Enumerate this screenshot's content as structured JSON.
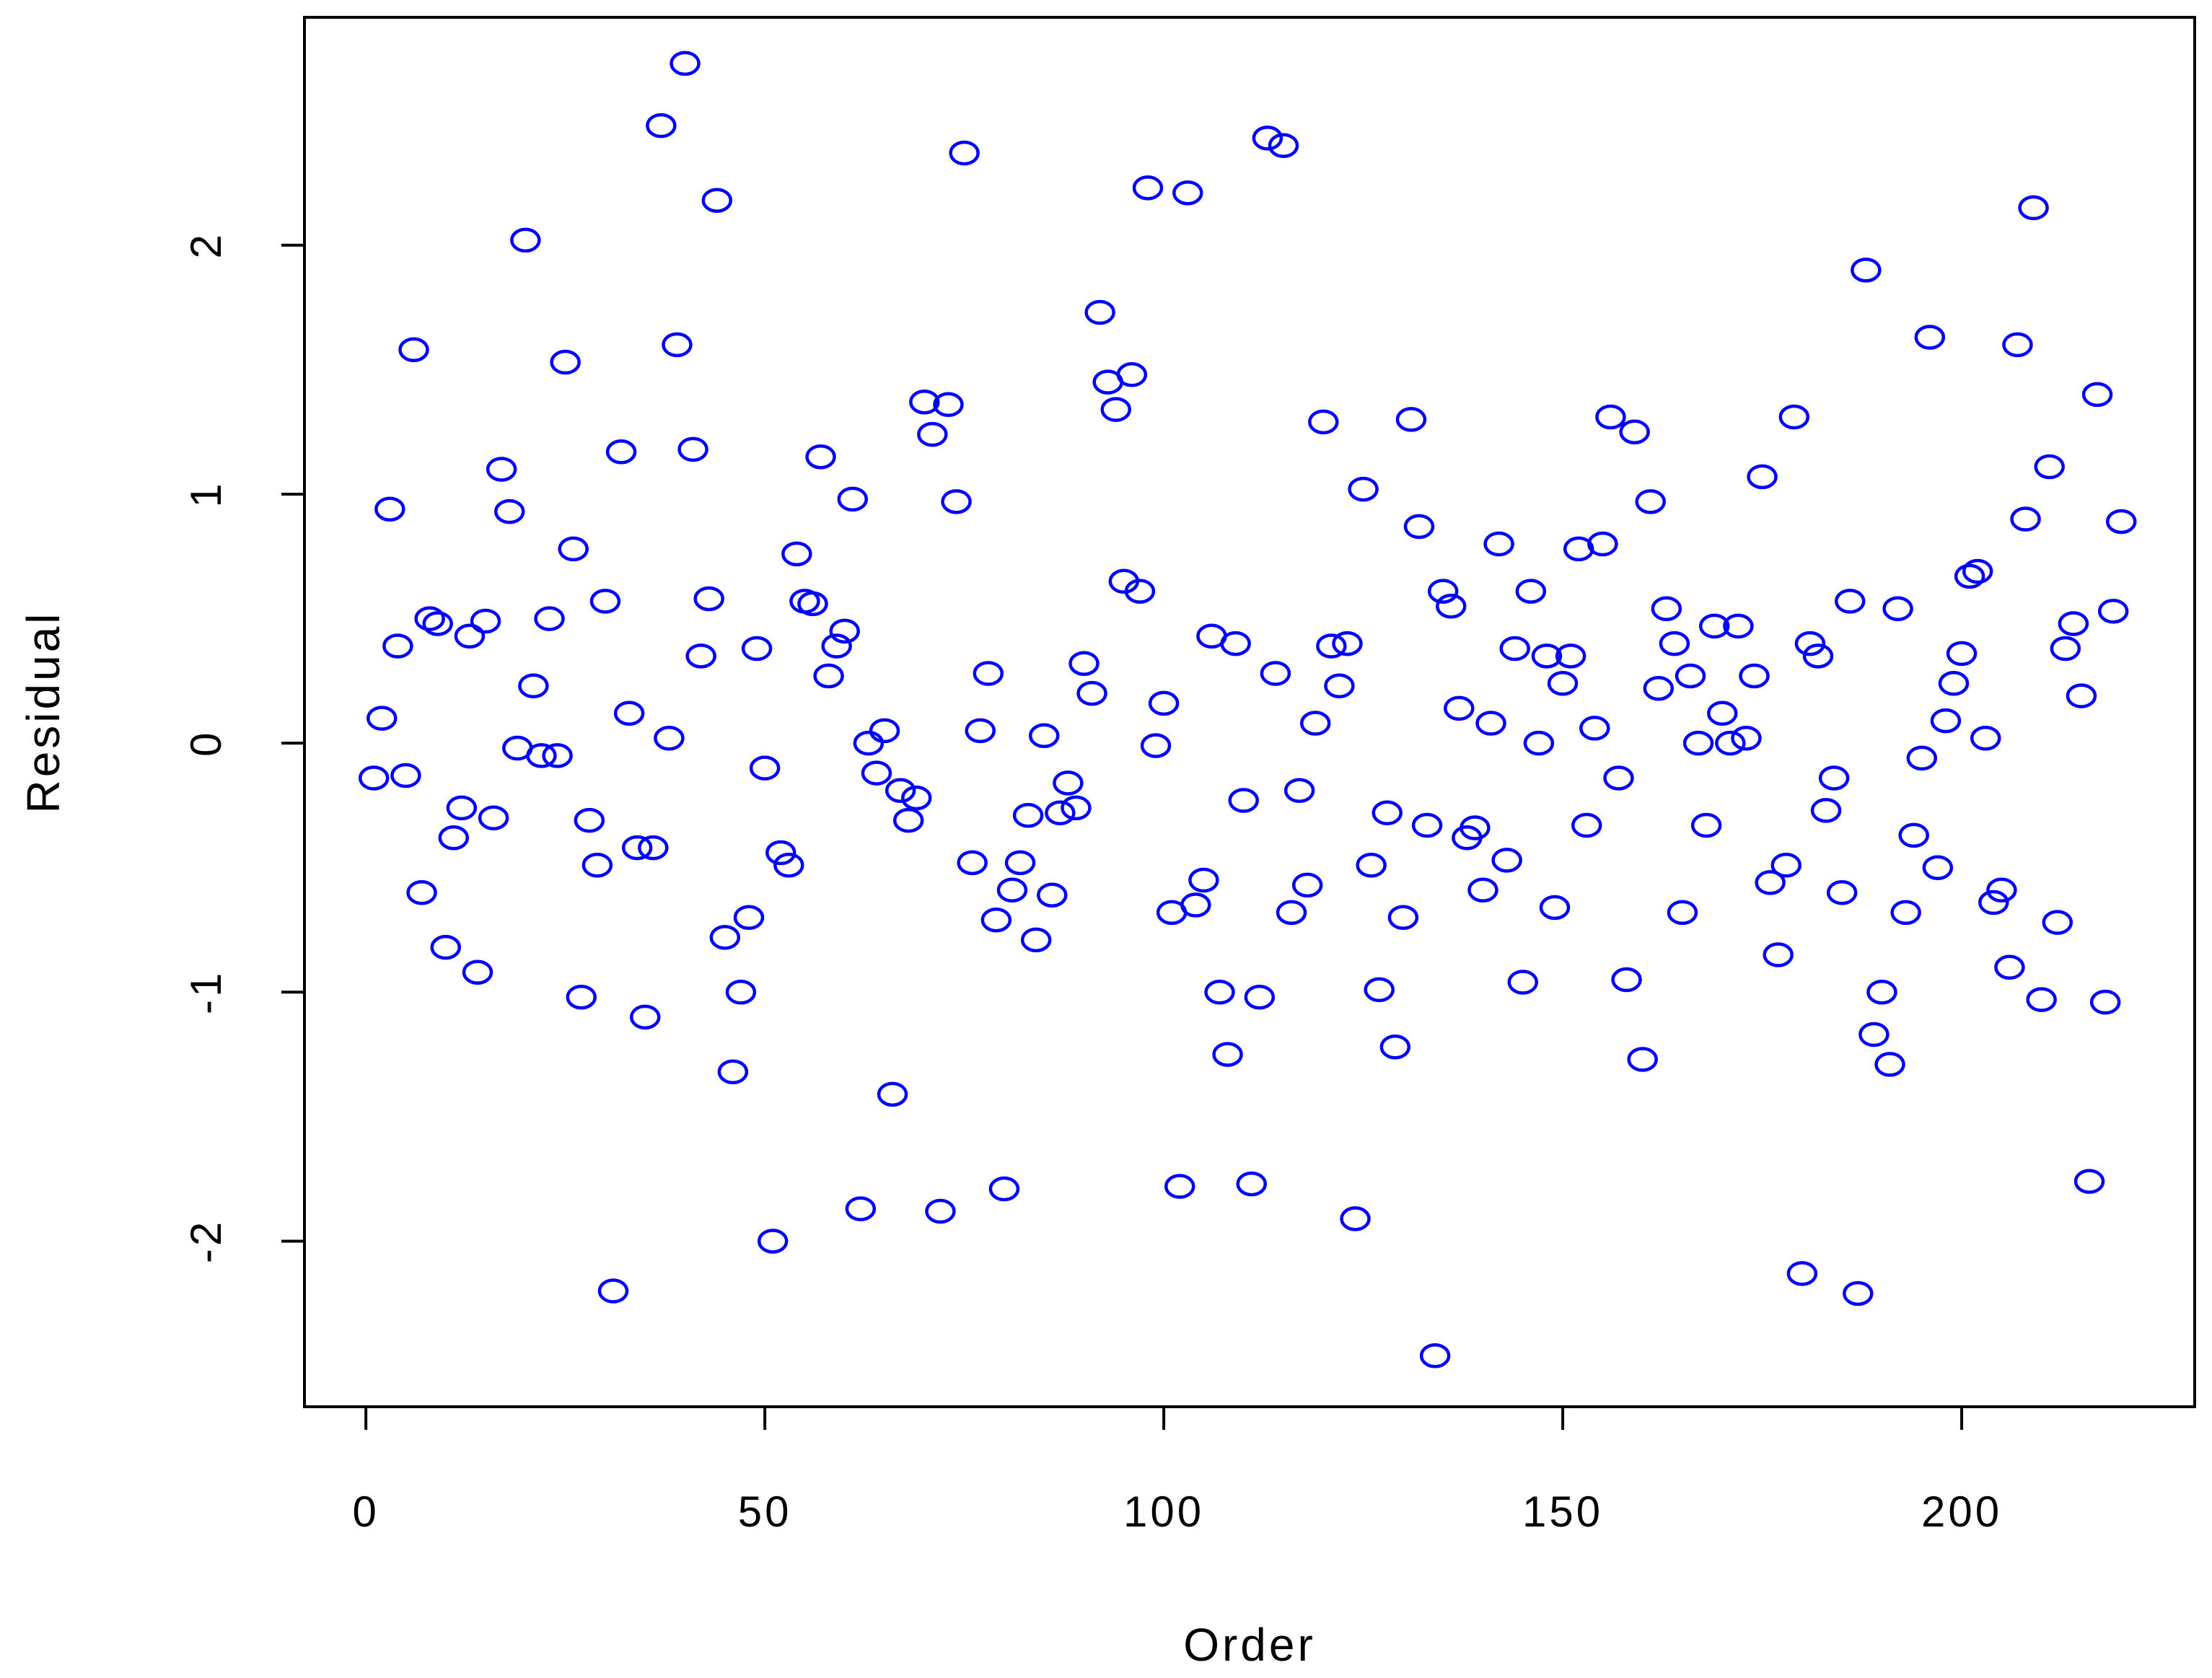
{
  "chart_data": {
    "type": "scatter",
    "title": "",
    "xlabel": "Order",
    "ylabel": "Residual",
    "xlim": [
      -7.7,
      229.2
    ],
    "ylim": [
      -2.665,
      2.915
    ],
    "xticks": [
      0,
      50,
      100,
      150,
      200
    ],
    "xtick_labels": [
      "0",
      "50",
      "100",
      "150",
      "200"
    ],
    "yticks": [
      -2,
      -1,
      0,
      1,
      2
    ],
    "ytick_labels": [
      "-2",
      "-1",
      "0",
      "1",
      "2"
    ],
    "grid": false,
    "legend": "none",
    "marker": "open-circle",
    "colors": {
      "points": "#0000ff",
      "axes": "#000000"
    },
    "series": [
      {
        "x": [
          1,
          2,
          3,
          4,
          5,
          6,
          7,
          8,
          9,
          10,
          11,
          12,
          13,
          14,
          15,
          16,
          17,
          18,
          19,
          20,
          21,
          22,
          23,
          24,
          25,
          26,
          27,
          28,
          29,
          30,
          31,
          32,
          33,
          34,
          35,
          36,
          37,
          38,
          39,
          40,
          41,
          42,
          43,
          44,
          45,
          46,
          47,
          48,
          49,
          50,
          51,
          52,
          53,
          54,
          55,
          56,
          57,
          58,
          59,
          60,
          61,
          62,
          63,
          64,
          65,
          66,
          67,
          68,
          69,
          70,
          71,
          72,
          73,
          74,
          75,
          76,
          77,
          78,
          79,
          80,
          81,
          82,
          83,
          84,
          85,
          86,
          87,
          88,
          89,
          90,
          91,
          92,
          93,
          94,
          95,
          96,
          97,
          98,
          99,
          100,
          101,
          102,
          103,
          104,
          105,
          106,
          107,
          108,
          109,
          110,
          111,
          112,
          113,
          114,
          115,
          116,
          117,
          118,
          119,
          120,
          121,
          122,
          123,
          124,
          125,
          126,
          127,
          128,
          129,
          130,
          131,
          132,
          133,
          134,
          135,
          136,
          137,
          138,
          139,
          140,
          141,
          142,
          143,
          144,
          145,
          146,
          147,
          148,
          149,
          150,
          151,
          152,
          153,
          154,
          155,
          156,
          157,
          158,
          159,
          160,
          161,
          162,
          163,
          164,
          165,
          166,
          167,
          168,
          169,
          170,
          171,
          172,
          173,
          174,
          175,
          176,
          177,
          178,
          179,
          180,
          181,
          182,
          183,
          184,
          185,
          186,
          187,
          188,
          189,
          190,
          191,
          192,
          193,
          194,
          195,
          196,
          197,
          198,
          199,
          200,
          201,
          202,
          203,
          204,
          205,
          206,
          207,
          208,
          209,
          210,
          211,
          212,
          213,
          214,
          215,
          216,
          217,
          218,
          219,
          220
        ],
        "y": [
          -0.14,
          0.1,
          0.94,
          0.39,
          -0.13,
          1.58,
          -0.6,
          0.5,
          0.48,
          -0.82,
          -0.38,
          -0.26,
          0.43,
          -0.92,
          0.49,
          -0.3,
          1.1,
          0.93,
          -0.02,
          2.02,
          0.23,
          -0.05,
          0.5,
          -0.05,
          1.53,
          0.78,
          -1.02,
          -0.31,
          -0.49,
          0.57,
          -2.2,
          1.17,
          0.12,
          -0.42,
          -1.1,
          -0.42,
          2.48,
          0.02,
          1.6,
          2.73,
          1.18,
          0.35,
          0.58,
          2.18,
          -0.78,
          -1.32,
          -1.0,
          -0.7,
          0.38,
          -0.1,
          -2.0,
          -0.44,
          -0.49,
          0.76,
          0.57,
          0.56,
          1.15,
          0.27,
          0.39,
          0.45,
          0.98,
          -1.87,
          0.0,
          -0.12,
          0.05,
          -1.41,
          -0.19,
          -0.31,
          -0.22,
          1.37,
          1.24,
          -1.88,
          1.36,
          0.97,
          2.37,
          -0.48,
          0.05,
          0.28,
          -0.71,
          -1.79,
          -0.59,
          -0.48,
          -0.29,
          -0.79,
          0.03,
          -0.61,
          -0.28,
          -0.16,
          -0.26,
          0.32,
          0.2,
          1.73,
          1.45,
          1.34,
          0.65,
          1.48,
          0.61,
          2.23,
          -0.01,
          0.16,
          -0.68,
          -1.78,
          2.21,
          -0.65,
          -0.55,
          0.43,
          -1.0,
          -1.25,
          0.4,
          -0.23,
          -1.77,
          -1.02,
          2.43,
          0.28,
          2.4,
          -0.68,
          -0.19,
          -0.57,
          0.08,
          1.29,
          0.39,
          0.23,
          0.4,
          -1.91,
          1.02,
          -0.49,
          -0.99,
          -0.28,
          -1.22,
          -0.7,
          1.3,
          0.87,
          -0.33,
          -2.46,
          0.61,
          0.55,
          0.14,
          -0.38,
          -0.34,
          -0.59,
          0.08,
          0.8,
          -0.47,
          0.38,
          -0.96,
          0.61,
          0.0,
          0.35,
          -0.66,
          0.24,
          0.35,
          0.78,
          -0.33,
          0.06,
          0.8,
          1.31,
          -0.14,
          -0.95,
          1.25,
          -1.27,
          0.97,
          0.22,
          0.54,
          0.4,
          -0.68,
          0.27,
          0.0,
          -0.33,
          0.47,
          0.12,
          0.0,
          0.47,
          0.02,
          0.27,
          1.07,
          -0.56,
          -0.85,
          -0.49,
          1.31,
          -2.13,
          0.4,
          0.35,
          -0.27,
          -0.14,
          -0.6,
          0.57,
          -2.21,
          1.9,
          -1.17,
          -1.0,
          -1.29,
          0.54,
          -0.68,
          -0.37,
          -0.06,
          1.63,
          -0.5,
          0.09,
          0.24,
          0.36,
          0.67,
          0.69,
          0.02,
          -0.64,
          -0.59,
          -0.9,
          1.6,
          0.9,
          2.15,
          -1.03,
          1.11,
          -0.72,
          0.38,
          0.48,
          0.19,
          -1.76,
          1.4,
          -1.04,
          0.53,
          0.89
        ]
      }
    ]
  }
}
